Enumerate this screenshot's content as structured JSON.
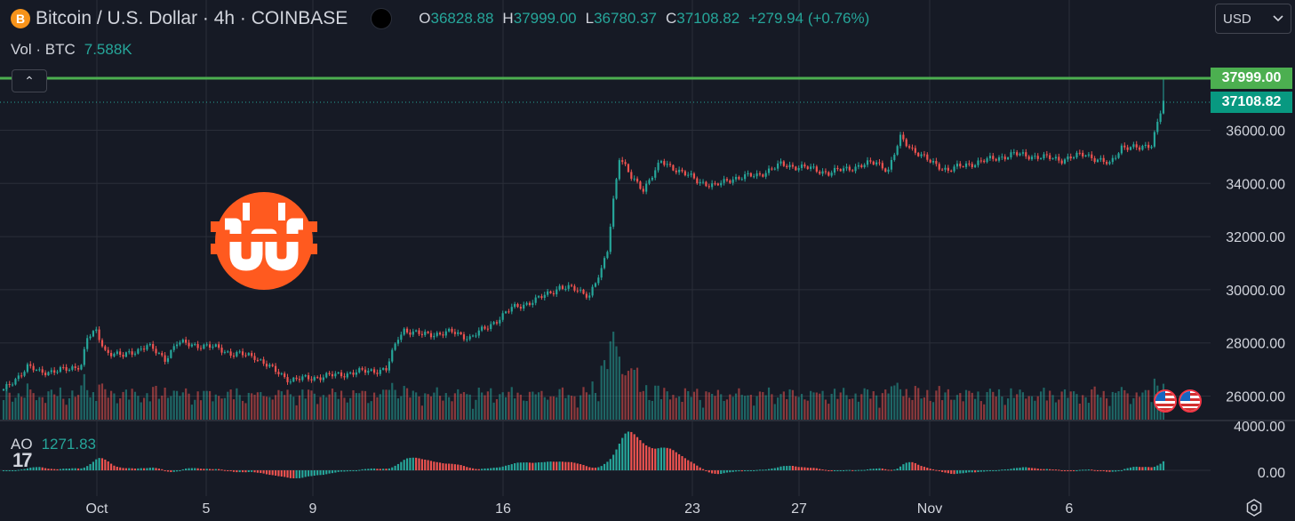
{
  "header": {
    "symbol_icon": "B",
    "title": "Bitcoin / U.S. Dollar · 4h · COINBASE",
    "ohlc": {
      "o_label": "O",
      "o": "36828.88",
      "h_label": "H",
      "h": "37999.00",
      "l_label": "L",
      "l": "36780.37",
      "c_label": "C",
      "c": "37108.82",
      "change": "+279.94 (+0.76%)"
    }
  },
  "volume": {
    "label": "Vol · BTC",
    "value": "7.588K"
  },
  "currency": {
    "label": "USD",
    "icon": "chevron-down-icon"
  },
  "collapse": {
    "icon": "chevron-up-icon",
    "glyph": "⌃"
  },
  "price_tags": {
    "high": "37999.00",
    "last": "37108.82"
  },
  "ao": {
    "label": "AO",
    "value": "1271.83"
  },
  "watermark": {
    "text": "17"
  },
  "colors": {
    "up": "#26a69a",
    "down": "#ef5350",
    "high_line": "#4caf50",
    "bg": "#161a25",
    "grid": "#2a2e39",
    "logo": "#ff5a1f"
  },
  "chart_data": {
    "type": "candlestick",
    "price_axis": {
      "ticks": [
        "36000.00",
        "34000.00",
        "32000.00",
        "30000.00",
        "28000.00",
        "26000.00"
      ],
      "range": [
        25000,
        38600
      ]
    },
    "ao_axis": {
      "ticks": [
        "4000.00",
        "0.00"
      ]
    },
    "x_ticks": [
      "Oct",
      "5",
      "9",
      "16",
      "23",
      "27",
      "Nov",
      "6"
    ],
    "anchors": [
      [
        0,
        26200
      ],
      [
        8,
        27100
      ],
      [
        12,
        26900
      ],
      [
        22,
        27000
      ],
      [
        26,
        27200
      ],
      [
        28,
        28200
      ],
      [
        31,
        28400
      ],
      [
        34,
        27700
      ],
      [
        40,
        27500
      ],
      [
        48,
        27900
      ],
      [
        54,
        27400
      ],
      [
        58,
        28000
      ],
      [
        66,
        27900
      ],
      [
        72,
        27800
      ],
      [
        76,
        27600
      ],
      [
        84,
        27500
      ],
      [
        90,
        27000
      ],
      [
        96,
        26600
      ],
      [
        104,
        26700
      ],
      [
        112,
        26800
      ],
      [
        118,
        26900
      ],
      [
        128,
        27000
      ],
      [
        132,
        28200
      ],
      [
        134,
        28500
      ],
      [
        140,
        28300
      ],
      [
        150,
        28400
      ],
      [
        156,
        28200
      ],
      [
        162,
        28600
      ],
      [
        170,
        29300
      ],
      [
        178,
        29600
      ],
      [
        186,
        30100
      ],
      [
        192,
        30000
      ],
      [
        196,
        29800
      ],
      [
        200,
        30700
      ],
      [
        202,
        31500
      ],
      [
        204,
        33400
      ],
      [
        206,
        35000
      ],
      [
        210,
        34200
      ],
      [
        214,
        33800
      ],
      [
        220,
        34800
      ],
      [
        224,
        34600
      ],
      [
        232,
        34100
      ],
      [
        238,
        33900
      ],
      [
        244,
        34200
      ],
      [
        252,
        34300
      ],
      [
        260,
        34700
      ],
      [
        268,
        34600
      ],
      [
        276,
        34400
      ],
      [
        284,
        34600
      ],
      [
        292,
        34800
      ],
      [
        296,
        34500
      ],
      [
        300,
        35700
      ],
      [
        304,
        35300
      ],
      [
        310,
        34800
      ],
      [
        316,
        34500
      ],
      [
        322,
        34700
      ],
      [
        330,
        34900
      ],
      [
        338,
        35100
      ],
      [
        346,
        35000
      ],
      [
        354,
        34900
      ],
      [
        362,
        35100
      ],
      [
        370,
        34700
      ],
      [
        374,
        35400
      ],
      [
        380,
        35300
      ],
      [
        384,
        35500
      ],
      [
        386,
        36300
      ],
      [
        388,
        37100
      ]
    ]
  }
}
